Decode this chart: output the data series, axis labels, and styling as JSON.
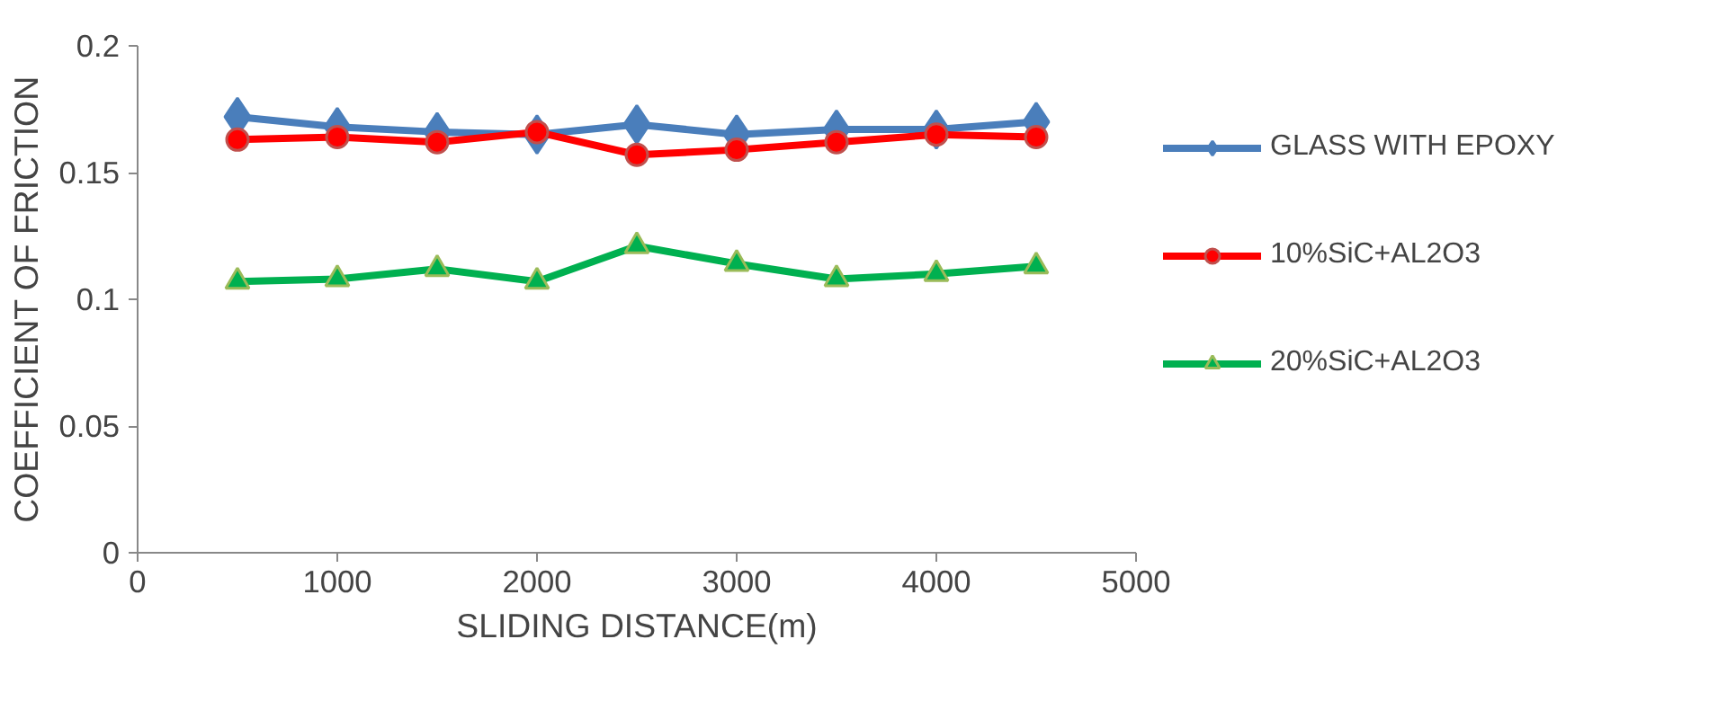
{
  "chart_data": {
    "type": "line",
    "xlabel": "SLIDING DISTANCE(m)",
    "ylabel": "COEFFICIENT OF FRICTION",
    "x": [
      500,
      1000,
      1500,
      2000,
      2500,
      3000,
      3500,
      4000,
      4500
    ],
    "series": [
      {
        "name": "GLASS WITH EPOXY",
        "color": "#4a7ebb",
        "marker": "diamond",
        "values": [
          0.172,
          0.168,
          0.166,
          0.165,
          0.169,
          0.165,
          0.167,
          0.167,
          0.17
        ]
      },
      {
        "name": "10%SiC+AL2O3",
        "color": "#ff0000",
        "marker": "circle",
        "values": [
          0.163,
          0.164,
          0.162,
          0.166,
          0.157,
          0.159,
          0.162,
          0.165,
          0.164
        ]
      },
      {
        "name": "20%SiC+AL2O3",
        "color": "#00b050",
        "marker": "triangle",
        "values": [
          0.107,
          0.108,
          0.112,
          0.107,
          0.121,
          0.114,
          0.108,
          0.11,
          0.113
        ]
      }
    ],
    "xlim": [
      0,
      5000
    ],
    "xticks": [
      0,
      1000,
      2000,
      3000,
      4000,
      5000
    ],
    "ylim": [
      0,
      0.2
    ],
    "yticks": [
      0,
      0.05,
      0.1,
      0.15,
      0.2
    ],
    "grid": false,
    "legend": "right"
  }
}
